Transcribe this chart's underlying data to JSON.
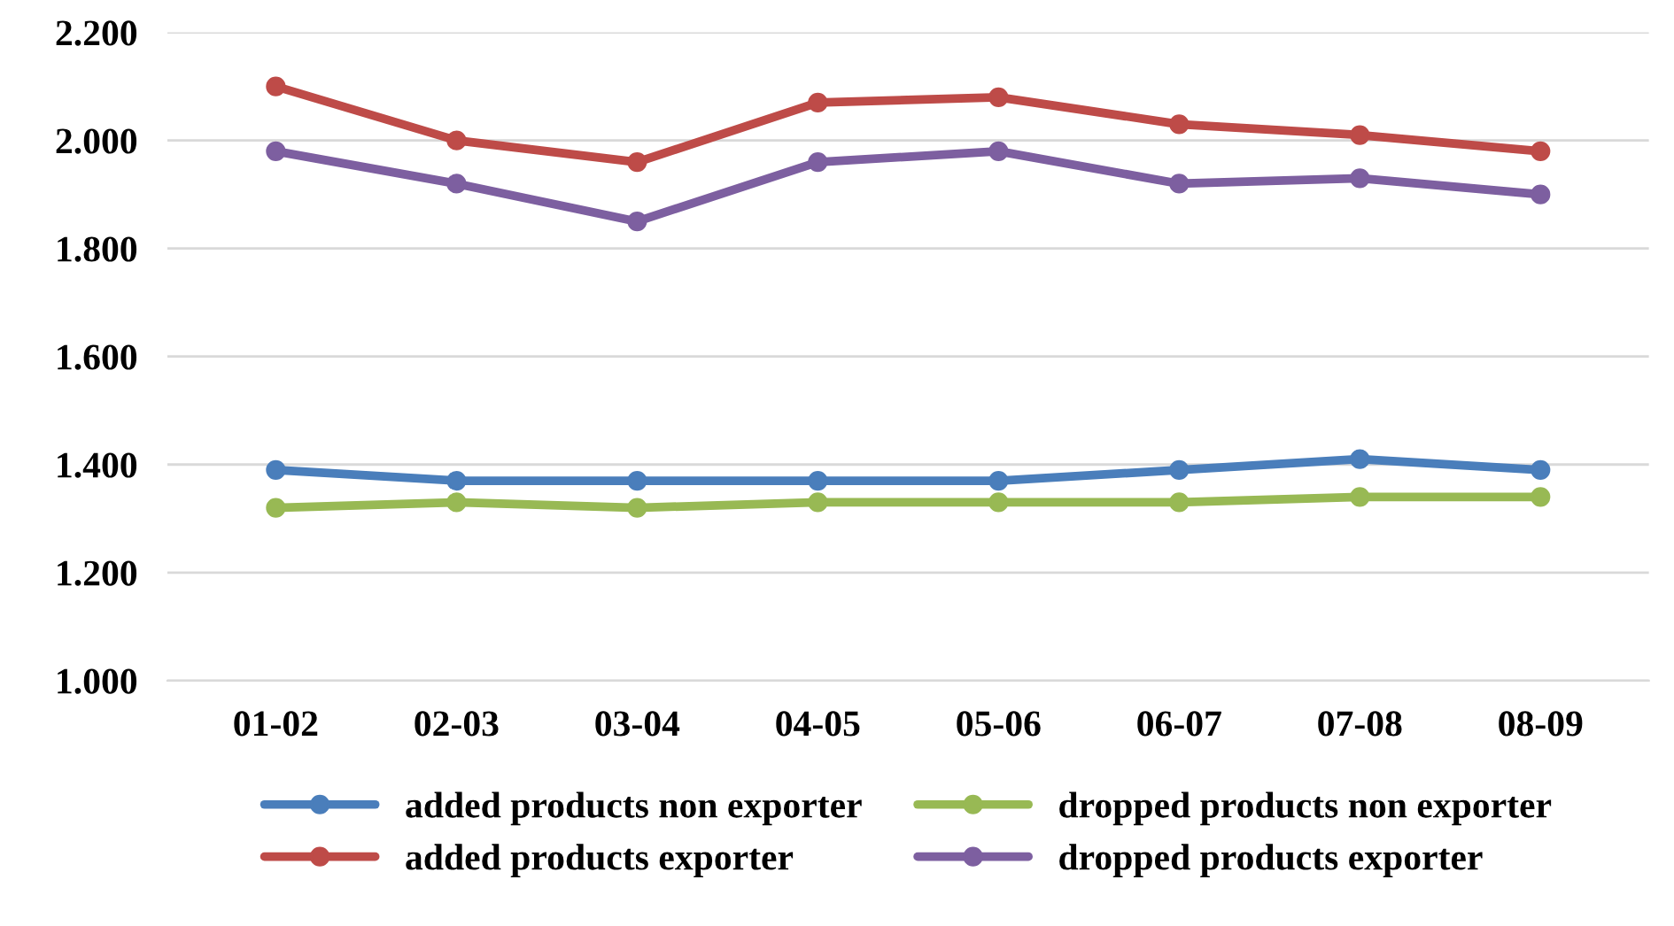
{
  "chart_data": {
    "type": "line",
    "categories": [
      "01-02",
      "02-03",
      "03-04",
      "04-05",
      "05-06",
      "06-07",
      "07-08",
      "08-09"
    ],
    "series": [
      {
        "name": "added products non exporter",
        "color": "#4a7ebb",
        "values": [
          1.39,
          1.37,
          1.37,
          1.37,
          1.37,
          1.39,
          1.41,
          1.39
        ]
      },
      {
        "name": "added products exporter",
        "color": "#be4b48",
        "values": [
          2.1,
          2.0,
          1.96,
          2.07,
          2.08,
          2.03,
          2.01,
          1.98
        ]
      },
      {
        "name": "dropped products non exporter",
        "color": "#98b954",
        "values": [
          1.32,
          1.33,
          1.32,
          1.33,
          1.33,
          1.33,
          1.34,
          1.34
        ]
      },
      {
        "name": "dropped products exporter",
        "color": "#7d5fa0",
        "values": [
          1.98,
          1.92,
          1.85,
          1.96,
          1.98,
          1.92,
          1.93,
          1.9
        ]
      }
    ],
    "ylim": [
      1.0,
      2.2
    ],
    "yticks": [
      {
        "value": 1.0,
        "label": "1.000"
      },
      {
        "value": 1.2,
        "label": "1.200"
      },
      {
        "value": 1.4,
        "label": "1.400"
      },
      {
        "value": 1.6,
        "label": "1.600"
      },
      {
        "value": 1.8,
        "label": "1.800"
      },
      {
        "value": 2.0,
        "label": "2.000"
      },
      {
        "value": 2.2,
        "label": "2.200"
      }
    ],
    "grid": "y",
    "legend": "bottom",
    "marker": "circle",
    "line_style": "solid"
  }
}
